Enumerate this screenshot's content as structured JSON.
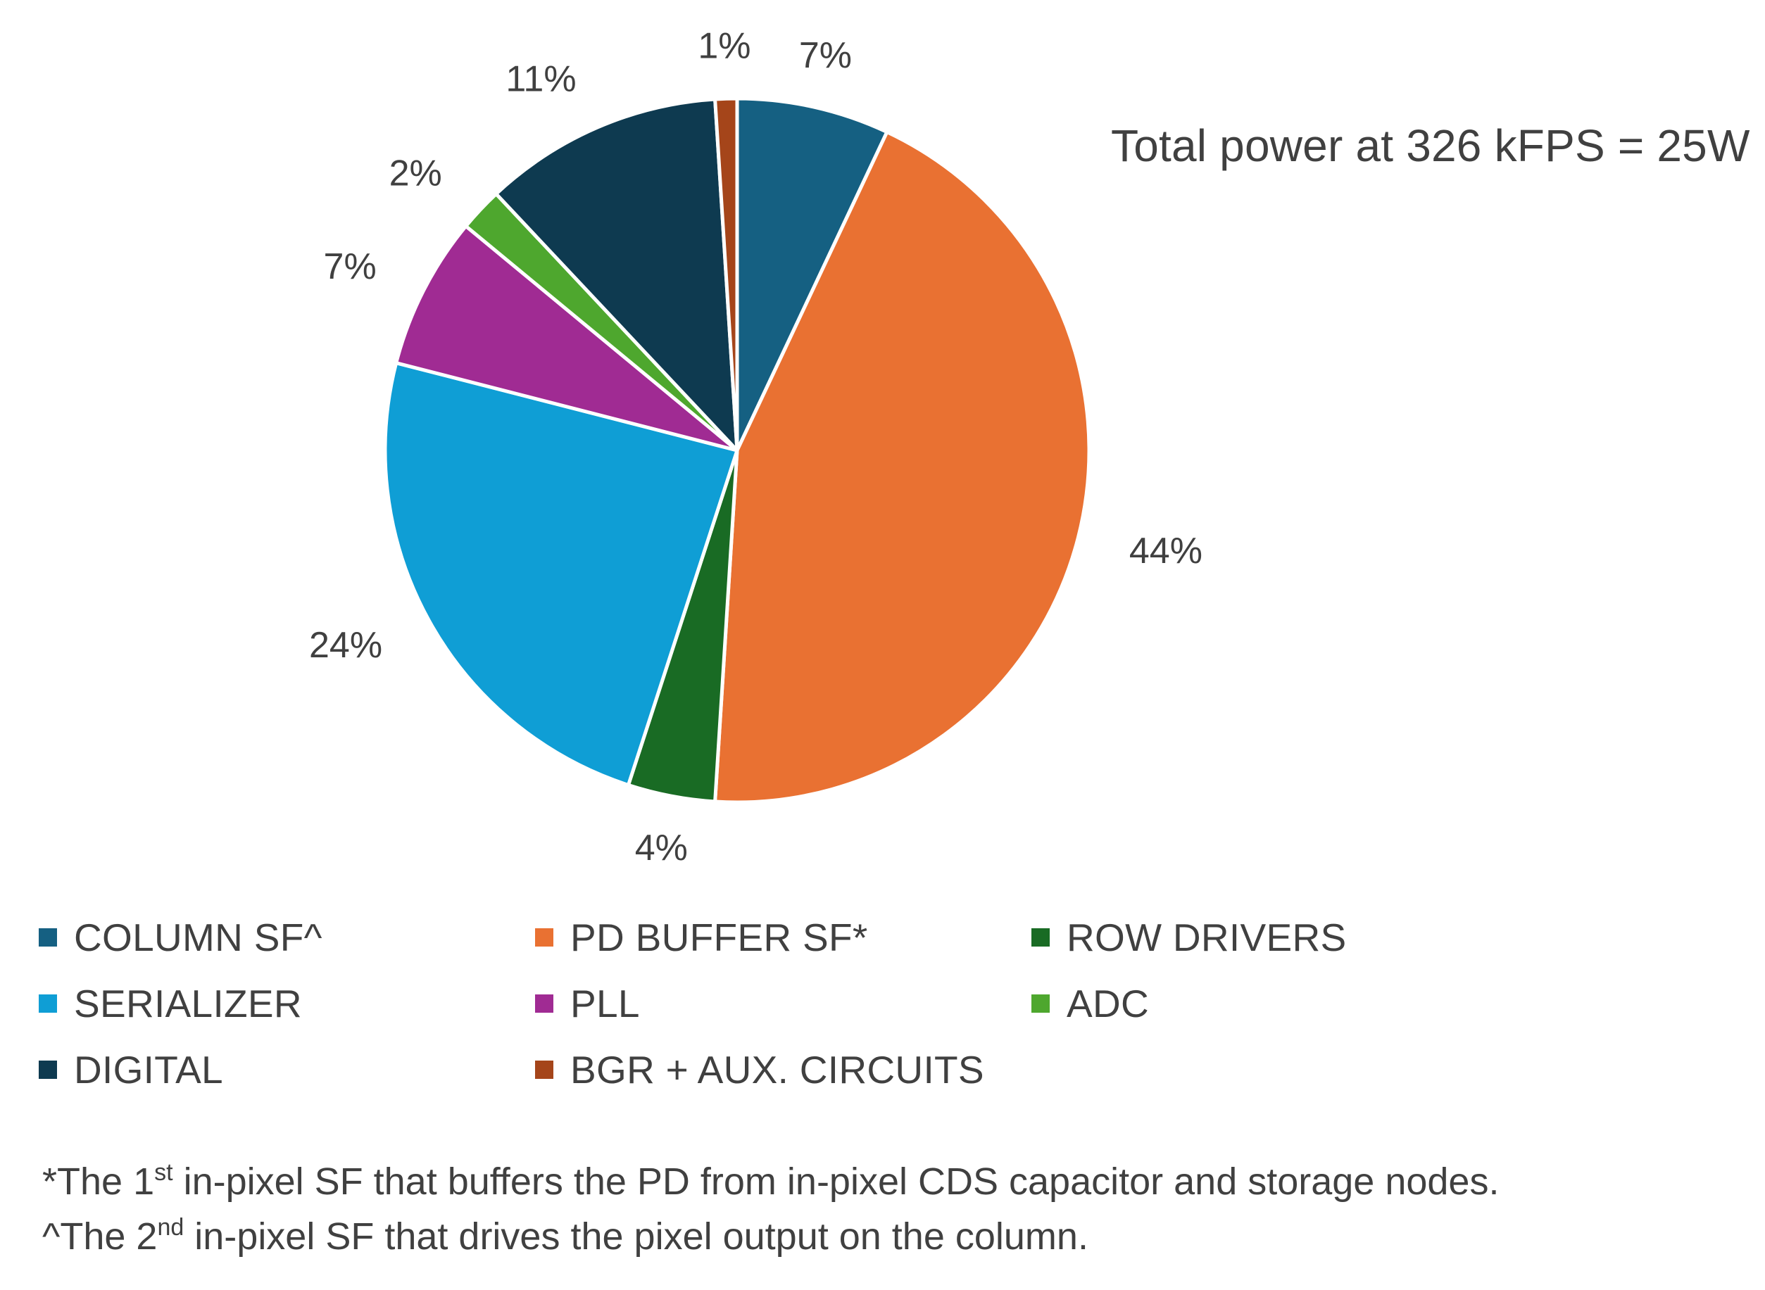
{
  "chart_data": {
    "type": "pie",
    "title": "",
    "annotation": "Total power at 326 kFPS = 25W",
    "start_angle_deg": 0,
    "direction": "clockwise",
    "slices": [
      {
        "name": "COLUMN SF^",
        "value": 7,
        "label": "7%",
        "color": "#156082"
      },
      {
        "name": "PD BUFFER SF*",
        "value": 44,
        "label": "44%",
        "color": "#E97132"
      },
      {
        "name": "ROW DRIVERS",
        "value": 4,
        "label": "4%",
        "color": "#196B24"
      },
      {
        "name": "SERIALIZER",
        "value": 24,
        "label": "24%",
        "color": "#0F9ED5"
      },
      {
        "name": "PLL",
        "value": 7,
        "label": "7%",
        "color": "#A02B93"
      },
      {
        "name": "ADC",
        "value": 2,
        "label": "2%",
        "color": "#4EA72E"
      },
      {
        "name": "DIGITAL",
        "value": 11,
        "label": "11%",
        "color": "#0E3A50"
      },
      {
        "name": "BGR + AUX. CIRCUITS",
        "value": 1,
        "label": "1%",
        "color": "#A5451A"
      }
    ],
    "legend_position": "bottom"
  },
  "legend": [
    {
      "label": "COLUMN SF^",
      "color": "#156082"
    },
    {
      "label": "PD BUFFER SF*",
      "color": "#E97132"
    },
    {
      "label": "ROW DRIVERS",
      "color": "#196B24"
    },
    {
      "label": "SERIALIZER",
      "color": "#0F9ED5"
    },
    {
      "label": "PLL",
      "color": "#A02B93"
    },
    {
      "label": "ADC",
      "color": "#4EA72E"
    },
    {
      "label": "DIGITAL",
      "color": "#0E3A50"
    },
    {
      "label": "BGR + AUX. CIRCUITS",
      "color": "#A5451A"
    }
  ],
  "footnotes": {
    "pd_buffer": {
      "prefix": "*The 1",
      "sup": "st",
      "rest": " in-pixel SF that buffers the PD from in-pixel CDS capacitor and storage nodes."
    },
    "column_sf": {
      "prefix": "^The 2",
      "sup": "nd",
      "rest": " in-pixel SF that drives the pixel output on the column."
    }
  }
}
